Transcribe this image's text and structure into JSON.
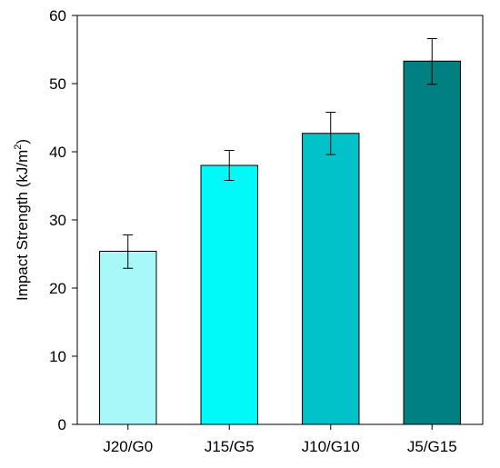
{
  "chart_data": {
    "type": "bar",
    "title": "",
    "xlabel": "",
    "ylabel": "Impact Strength (kJ/m²)",
    "ylabel_parts": {
      "main": "Impact Strength (kJ/m",
      "sup": "2",
      "close": ")"
    },
    "categories": [
      "J20/G0",
      "J15/G5",
      "J10/G10",
      "J5/G15"
    ],
    "values": [
      25.4,
      38.0,
      42.7,
      53.3
    ],
    "error_low": [
      22.9,
      35.8,
      39.6,
      49.9
    ],
    "error_high": [
      27.8,
      40.2,
      45.8,
      56.6
    ],
    "bar_colors": [
      "#a8f8fa",
      "#00fafa",
      "#00c2c8",
      "#008080"
    ],
    "ylim": [
      0,
      60
    ],
    "yticks": [
      0,
      10,
      20,
      30,
      40,
      50,
      60
    ],
    "grid": false,
    "legend": "none"
  }
}
